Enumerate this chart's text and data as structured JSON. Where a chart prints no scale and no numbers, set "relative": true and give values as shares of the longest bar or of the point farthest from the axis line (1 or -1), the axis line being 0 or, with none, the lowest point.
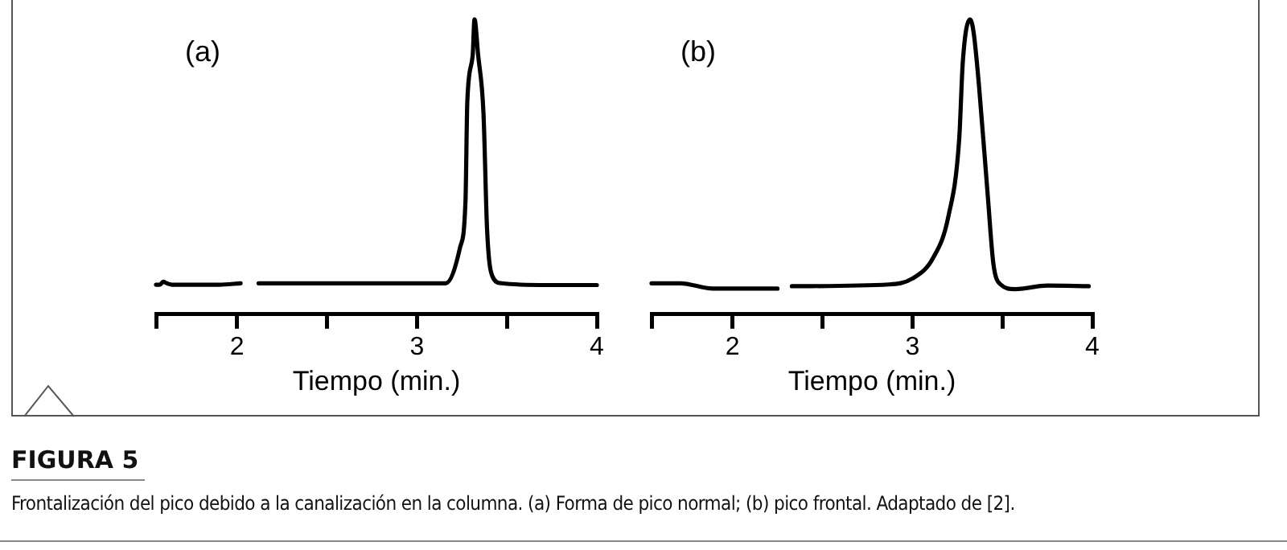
{
  "chart_data": [
    {
      "type": "line",
      "title": "(a)",
      "xlabel": "Tiempo (min.)",
      "relative": true,
      "color": "#000000",
      "grid": false,
      "legend": false,
      "marker": "none",
      "line_style": "solid",
      "xlim": [
        1.55,
        4
      ],
      "xticks": [
        {
          "value": 1.55,
          "label": null
        },
        2,
        {
          "value": 2.5,
          "label": null
        },
        3,
        {
          "value": 3.5,
          "label": null
        },
        4
      ],
      "x": [
        1.55,
        1.57,
        1.59,
        1.61,
        1.64,
        1.77,
        1.9,
        2.02,
        2.07,
        2.12,
        2.6,
        3.16,
        3.24,
        3.27,
        3.28,
        3.31,
        3.32,
        3.34,
        3.37,
        3.39,
        3.42,
        3.47,
        3.72,
        3.87,
        4.0
      ],
      "values": [
        0.1,
        0.1,
        0.11,
        0.105,
        0.1,
        0.1,
        0.1,
        0.105,
        null,
        0.105,
        0.105,
        0.105,
        0.227,
        0.385,
        0.72,
        0.878,
        1,
        0.88,
        0.68,
        0.286,
        0.128,
        0.105,
        0.099,
        0.099,
        0.099
      ],
      "annotations": [
        "FIGURA 5",
        "Frontalización del pico debido a la canalización en la columna. (a) Forma de pico normal; (b) pico frontal. Adaptado de [2]."
      ]
    },
    {
      "type": "line",
      "title": "(b)",
      "xlabel": "Tiempo (min.)",
      "relative": true,
      "color": "#000000",
      "grid": false,
      "legend": false,
      "marker": "none",
      "line_style": "solid",
      "xlim": [
        1.55,
        4
      ],
      "xticks": [
        {
          "value": 1.55,
          "label": null
        },
        2,
        {
          "value": 2.5,
          "label": null
        },
        3,
        {
          "value": 3.5,
          "label": null
        },
        4
      ],
      "x": [
        1.55,
        1.71,
        1.89,
        2.25,
        2.29,
        2.33,
        2.87,
        3.0,
        3.115,
        3.2,
        3.26,
        3.28,
        3.32,
        3.34,
        3.37,
        3.42,
        3.45,
        3.49,
        3.57,
        3.75,
        3.98
      ],
      "values": [
        0.105,
        0.105,
        0.087,
        0.087,
        null,
        0.095,
        0.101,
        0.121,
        0.191,
        0.332,
        0.594,
        0.855,
        1,
        0.956,
        0.775,
        0.392,
        0.171,
        0.101,
        0.085,
        0.097,
        0.095
      ]
    }
  ]
}
